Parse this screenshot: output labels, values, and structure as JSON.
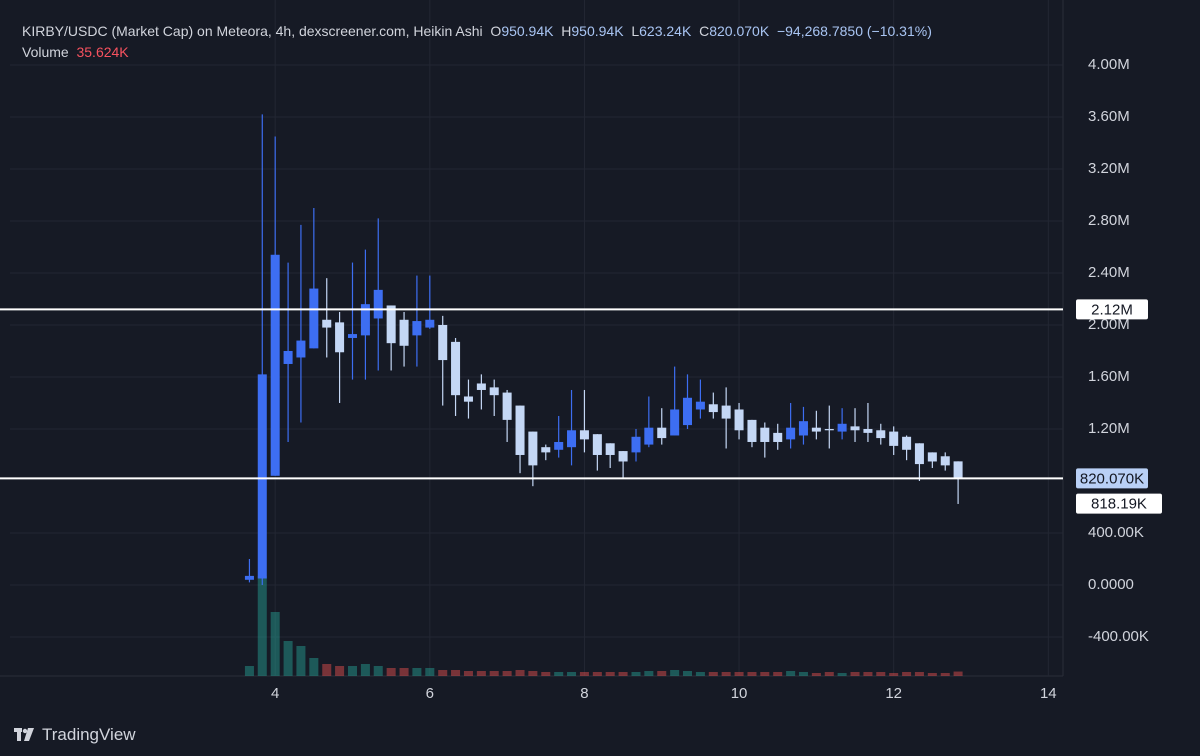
{
  "header": {
    "title": "KIRBY/USDC (Market Cap) on Meteora, 4h, dexscreener.com, Heikin Ashi",
    "o_label": "O",
    "o": "950.94K",
    "h_label": "H",
    "h": "950.94K",
    "l_label": "L",
    "l": "623.24K",
    "c_label": "C",
    "c": "820.070K",
    "change": "−94,268.7850 (−10.31%)",
    "volume_label": "Volume",
    "volume": "35.624K"
  },
  "brand": "TradingView",
  "chart_data": {
    "type": "candlestick",
    "x": [
      3.667,
      3.833,
      4,
      4.167,
      4.333,
      4.5,
      4.667,
      4.833,
      5,
      5.167,
      5.333,
      5.5,
      5.667,
      5.833,
      6,
      6.167,
      6.333,
      6.5,
      6.667,
      6.833,
      7,
      7.167,
      7.333,
      7.5,
      7.667,
      7.833,
      8,
      8.167,
      8.333,
      8.5,
      8.667,
      8.833,
      9,
      9.167,
      9.333,
      9.5,
      9.667,
      9.833,
      10,
      10.167,
      10.333,
      10.5,
      10.667,
      10.833,
      11,
      11.167,
      11.333,
      11.5,
      11.667,
      11.833,
      12,
      12.167,
      12.333,
      12.5,
      12.667,
      12.833
    ],
    "open": [
      40000,
      50000,
      840000,
      1700000,
      1750000,
      1820000,
      2040000,
      2020000,
      1900000,
      1920000,
      2050000,
      2150000,
      2040000,
      1920000,
      1980000,
      2000000,
      1870000,
      1450000,
      1550000,
      1520000,
      1480000,
      1380000,
      1180000,
      1060000,
      1040000,
      1060000,
      1190000,
      1160000,
      1090000,
      1030000,
      1020000,
      1080000,
      1210000,
      1150000,
      1230000,
      1350000,
      1390000,
      1380000,
      1350000,
      1270000,
      1210000,
      1170000,
      1120000,
      1150000,
      1210000,
      1200000,
      1180000,
      1220000,
      1200000,
      1190000,
      1180000,
      1140000,
      1090000,
      1020000,
      990000,
      950940
    ],
    "high": [
      200000,
      3620000,
      3450000,
      2480000,
      2770000,
      2900000,
      2360000,
      2100000,
      2480000,
      2580000,
      2820000,
      2150000,
      2100000,
      2380000,
      2380000,
      2070000,
      1900000,
      1580000,
      1620000,
      1580000,
      1500000,
      1380000,
      1180000,
      1080000,
      1300000,
      1500000,
      1500000,
      1160000,
      1090000,
      1030000,
      1200000,
      1450000,
      1360000,
      1680000,
      1620000,
      1580000,
      1480000,
      1520000,
      1400000,
      1270000,
      1250000,
      1240000,
      1400000,
      1370000,
      1340000,
      1380000,
      1360000,
      1360000,
      1400000,
      1240000,
      1220000,
      1150000,
      1090000,
      1020000,
      1020000,
      950940
    ],
    "low": [
      20000,
      0,
      840000,
      1100000,
      1250000,
      1820000,
      1750000,
      1400000,
      1580000,
      1580000,
      1650000,
      1650000,
      1680000,
      1680000,
      1970000,
      1380000,
      1300000,
      1280000,
      1350000,
      1300000,
      1100000,
      860000,
      760000,
      960000,
      980000,
      920000,
      1020000,
      880000,
      900000,
      820000,
      950000,
      1060000,
      1080000,
      1150000,
      1200000,
      1280000,
      1280000,
      1050000,
      1120000,
      1060000,
      980000,
      1040000,
      1050000,
      1080000,
      1120000,
      1050000,
      1120000,
      1100000,
      1100000,
      1080000,
      1000000,
      960000,
      800000,
      900000,
      880000,
      623240
    ],
    "close": [
      70000,
      1620000,
      2540000,
      1800000,
      1880000,
      2280000,
      1980000,
      1790000,
      1930000,
      2160000,
      2270000,
      1860000,
      1840000,
      2030000,
      2040000,
      1730000,
      1460000,
      1410000,
      1500000,
      1460000,
      1270000,
      1000000,
      920000,
      1020000,
      1100000,
      1190000,
      1120000,
      1000000,
      1000000,
      950000,
      1140000,
      1210000,
      1130000,
      1350000,
      1440000,
      1410000,
      1330000,
      1280000,
      1190000,
      1100000,
      1100000,
      1100000,
      1210000,
      1260000,
      1180000,
      1190000,
      1240000,
      1190000,
      1170000,
      1130000,
      1070000,
      1040000,
      930000,
      950000,
      920000,
      820070
    ],
    "volume": [
      80000,
      800000,
      512000,
      280000,
      240000,
      144000,
      96000,
      80000,
      80000,
      96000,
      80000,
      64000,
      64000,
      64000,
      64000,
      48000,
      48000,
      40000,
      40000,
      40000,
      40000,
      48000,
      40000,
      32000,
      32000,
      32000,
      32000,
      32000,
      32000,
      32000,
      32000,
      40000,
      40000,
      48000,
      40000,
      32000,
      32000,
      32000,
      32000,
      32000,
      32000,
      32000,
      40000,
      32000,
      24000,
      32000,
      24000,
      32000,
      32000,
      32000,
      24000,
      32000,
      32000,
      24000,
      24000,
      35624
    ],
    "volume_lim": [
      0,
      1000000
    ],
    "up_color": "#3d6ef2",
    "down_color": "#c4d7f5",
    "volume_up_color": "#26a69a",
    "volume_down_color": "#ef5350",
    "xlim": [
      0.57,
      14.19
    ],
    "xticks": [
      4,
      6,
      8,
      10,
      12,
      14
    ],
    "ylim": [
      -700000,
      4115000
    ],
    "yticks": [
      {
        "value": 4000000,
        "label": "4.00M"
      },
      {
        "value": 3600000,
        "label": "3.60M"
      },
      {
        "value": 3200000,
        "label": "3.20M"
      },
      {
        "value": 2800000,
        "label": "2.80M"
      },
      {
        "value": 2400000,
        "label": "2.40M"
      },
      {
        "value": 2000000,
        "label": "2.00M"
      },
      {
        "value": 1600000,
        "label": "1.60M"
      },
      {
        "value": 1200000,
        "label": "1.20M"
      },
      {
        "value": 400000,
        "label": "400.00K"
      },
      {
        "value": 0,
        "label": "0.0000"
      },
      {
        "value": -400000,
        "label": "-400.00K"
      }
    ],
    "hlines": [
      {
        "value": 2120000,
        "label": "2.12M"
      },
      {
        "value": 820070,
        "label": "820.070K"
      }
    ],
    "price_label": {
      "value": 818190,
      "label": "818.19K"
    },
    "grid": true
  }
}
